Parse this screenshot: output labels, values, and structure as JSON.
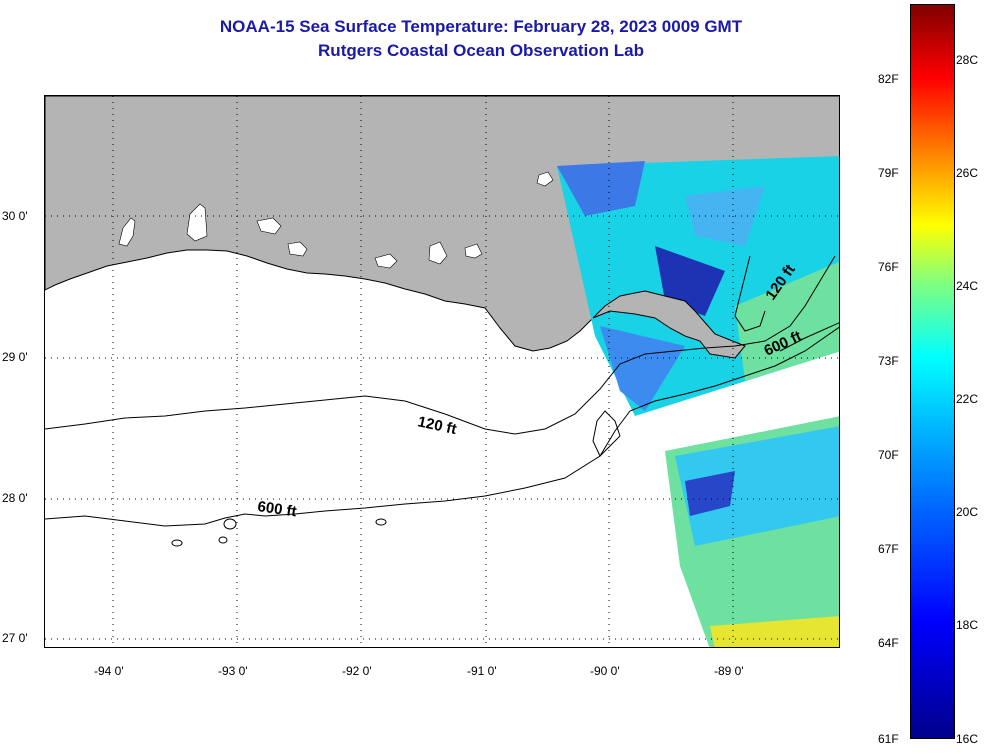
{
  "title": {
    "line1": "NOAA-15 Sea Surface Temperature:  February 28, 2023 0009 GMT",
    "line2": "Rutgers Coastal Ocean Observation Lab"
  },
  "map": {
    "land_color": "#b4b4b4",
    "water_color": "#ffffff",
    "latitude_labels": [
      "30 0'",
      "29 0'",
      "28 0'",
      "27 0'"
    ],
    "longitude_labels": [
      "-94 0'",
      "-93 0'",
      "-92 0'",
      "-91 0'",
      "-90 0'",
      "-89 0'"
    ],
    "contours": [
      {
        "label": "120 ft"
      },
      {
        "label": "600 ft"
      },
      {
        "label": "120 ft"
      },
      {
        "label": "600 ft"
      }
    ]
  },
  "colorbar": {
    "fahrenheit_labels": [
      "82F",
      "79F",
      "76F",
      "73F",
      "70F",
      "67F",
      "64F",
      "61F"
    ],
    "celsius_labels": [
      "28C",
      "26C",
      "24C",
      "22C",
      "20C",
      "18C",
      "16C"
    ],
    "colors": [
      "#00008c",
      "#0000ff",
      "#0080ff",
      "#00ffff",
      "#80ff80",
      "#ffff00",
      "#ff8000",
      "#ff0000",
      "#800000"
    ]
  }
}
